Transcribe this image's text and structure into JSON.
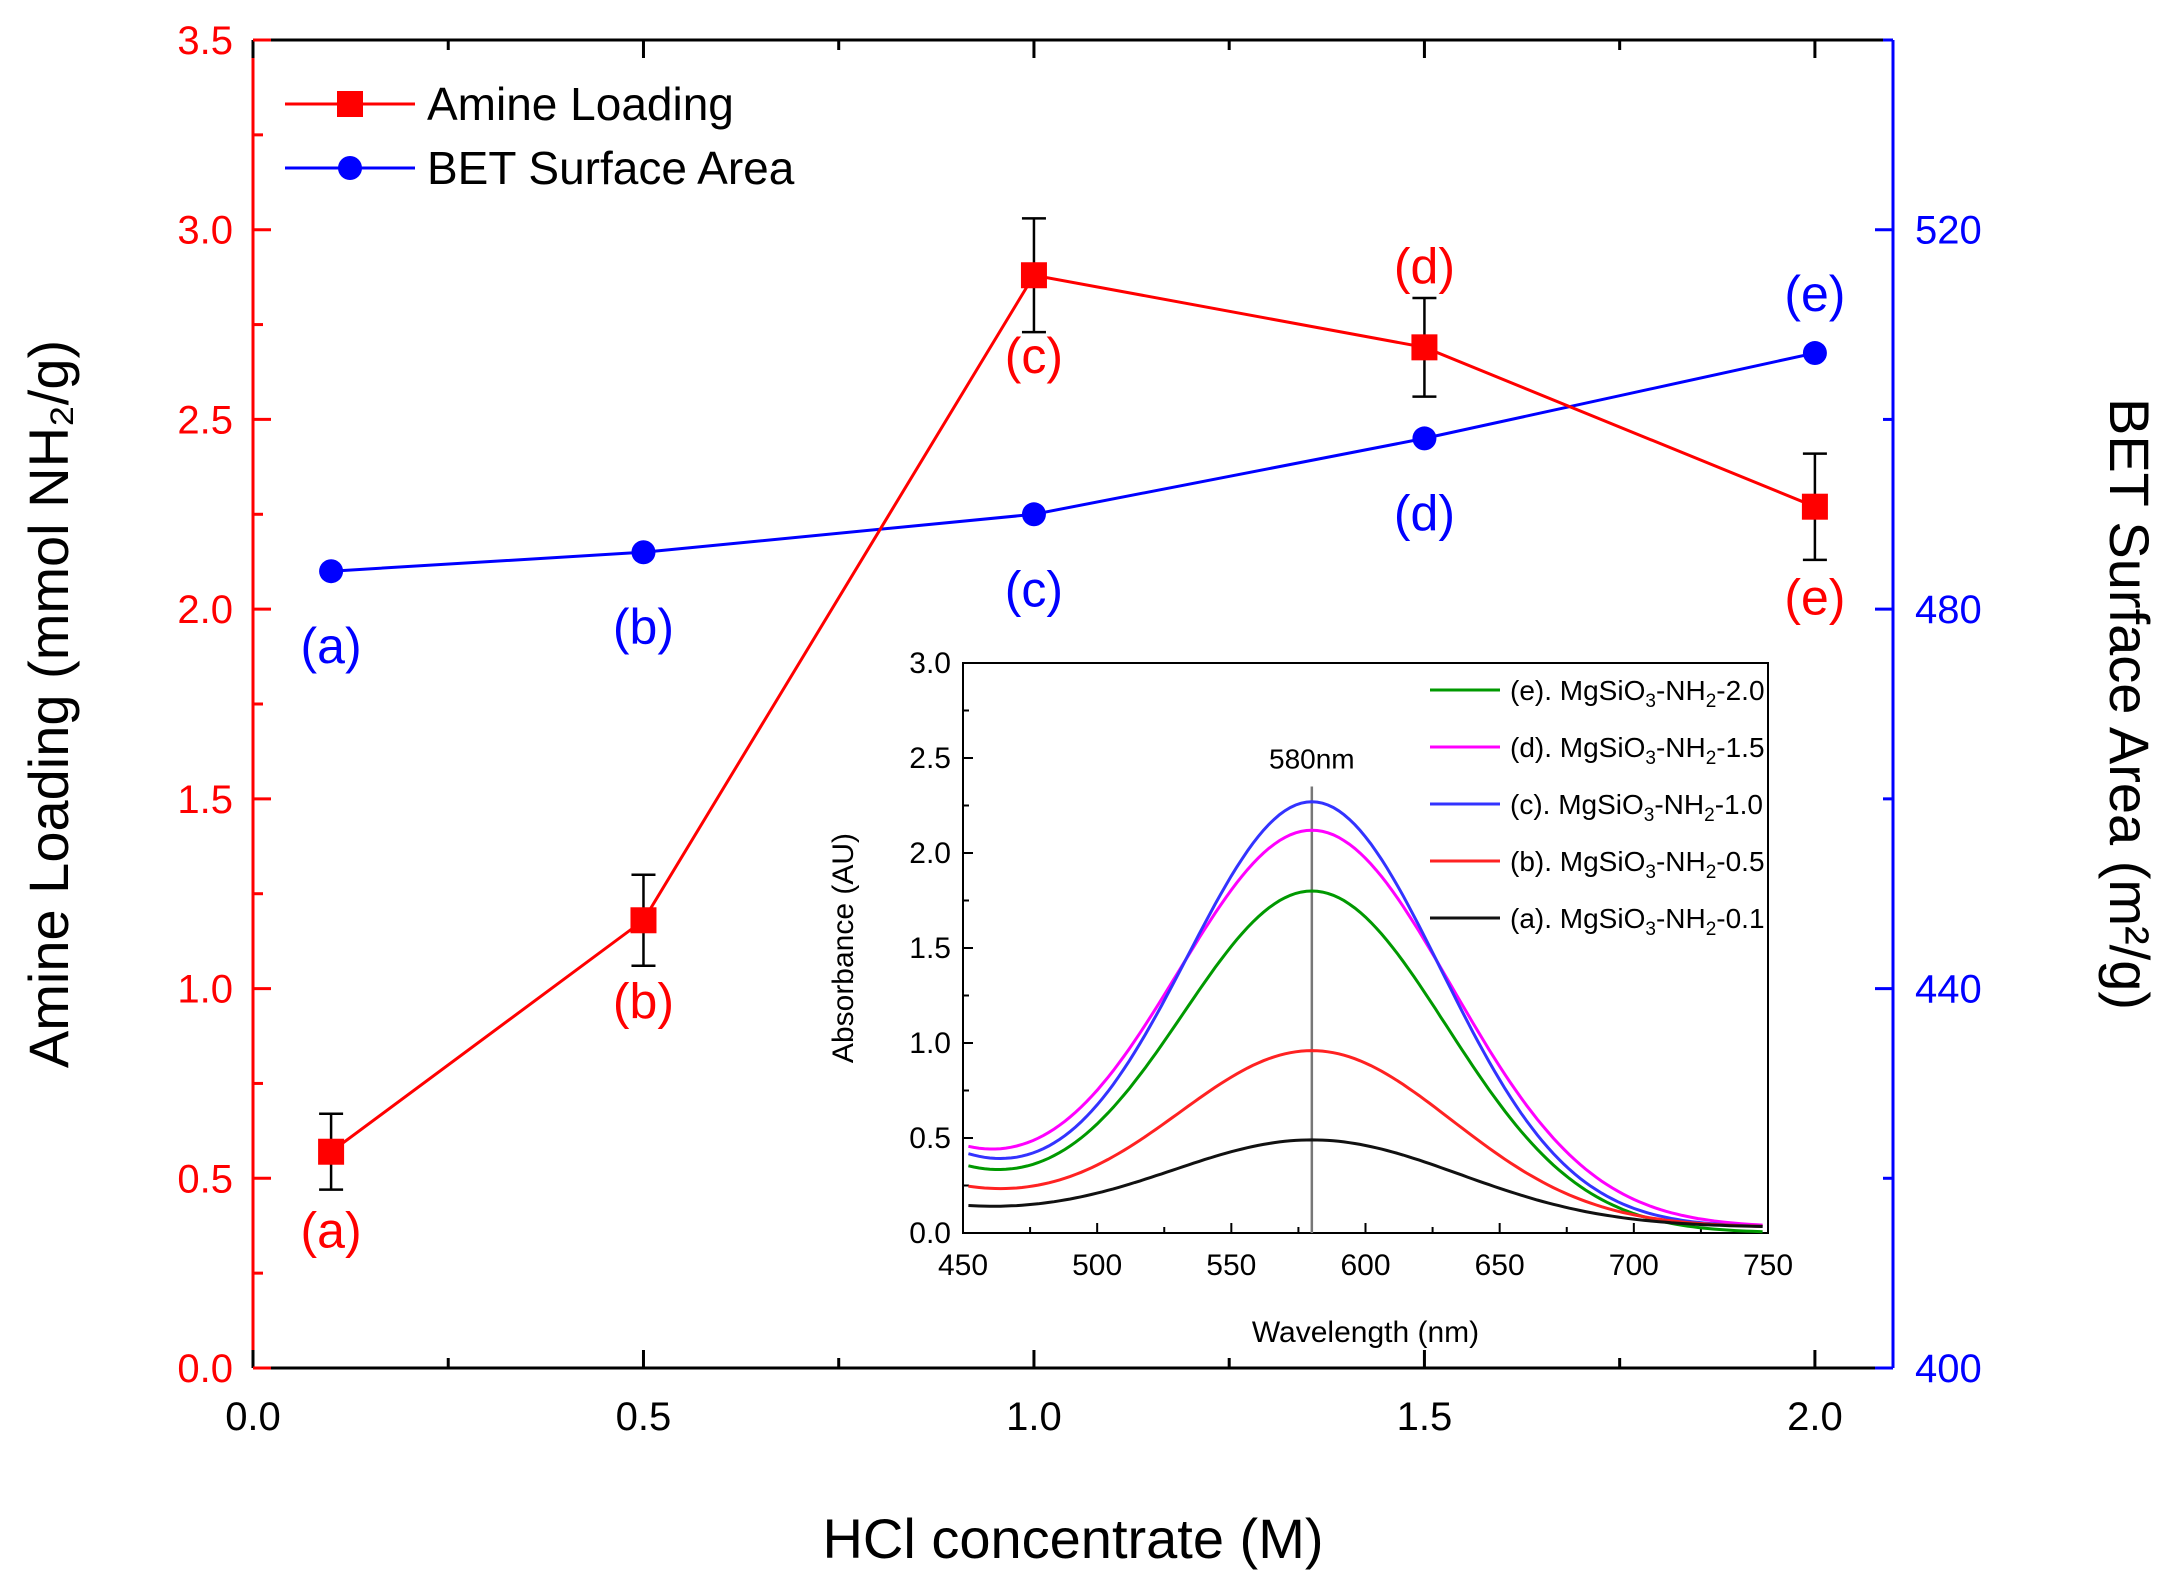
{
  "colors": {
    "primary_series": "#ff0000",
    "secondary_series": "#0000ff",
    "axis": "#000000",
    "inset_e": "#009900",
    "inset_d": "#ff00ff",
    "inset_c": "#3333ff",
    "inset_b": "#ff2222",
    "inset_a": "#111111",
    "marker_line": "#777777"
  },
  "chart_data": [
    {
      "type": "line",
      "xlabel": "HCl concentrate (M)",
      "ylabel_left": "Amine Loading (mmol NH₂/g)",
      "ylabel_right": "BET Surface Area (m²/g)",
      "xlim": [
        0.0,
        2.1
      ],
      "ylim_left": [
        0.0,
        3.5
      ],
      "ylim_right": [
        400,
        540
      ],
      "x_ticks": [
        "0.0",
        "0.5",
        "1.0",
        "1.5",
        "2.0"
      ],
      "y_left_ticks": [
        "0.0",
        "0.5",
        "1.0",
        "1.5",
        "2.0",
        "2.5",
        "3.0",
        "3.5"
      ],
      "y_right_ticks": [
        "400",
        "440",
        "480",
        "520"
      ],
      "legend_position": "top-left",
      "series": [
        {
          "name": "Amine Loading",
          "axis": "left",
          "marker": "square",
          "x": [
            0.1,
            0.5,
            1.0,
            1.5,
            2.0
          ],
          "y": [
            0.57,
            1.18,
            2.88,
            2.69,
            2.27
          ],
          "error": [
            0.1,
            0.12,
            0.15,
            0.13,
            0.14
          ],
          "point_labels": [
            "(a)",
            "(b)",
            "(c)",
            "(d)",
            "(e)"
          ]
        },
        {
          "name": "BET Surface Area",
          "axis": "right",
          "marker": "circle",
          "x": [
            0.1,
            0.5,
            1.0,
            1.5,
            2.0
          ],
          "y": [
            484,
            486,
            490,
            498,
            507
          ],
          "point_labels": [
            "(a)",
            "(b)",
            "(c)",
            "(d)",
            "(e)"
          ]
        }
      ]
    },
    {
      "type": "line",
      "xlabel": "Wavelength (nm)",
      "ylabel": "Absorbance (AU)",
      "xlim": [
        450,
        750
      ],
      "ylim": [
        0.0,
        3.0
      ],
      "x_ticks": [
        "450",
        "500",
        "550",
        "600",
        "650",
        "700",
        "750"
      ],
      "y_ticks": [
        "0.0",
        "0.5",
        "1.0",
        "1.5",
        "2.0",
        "2.5",
        "3.0"
      ],
      "annotation": "580nm",
      "annotation_x": 580,
      "legend_position": "top-right",
      "series": [
        {
          "name_prefix": "(e). MgSiO",
          "name_mid": "-NH",
          "name_suffix": "-2.0",
          "peak": 1.8,
          "baseline": 0.0,
          "start": 0.33,
          "width": 50
        },
        {
          "name_prefix": "(d). MgSiO",
          "name_mid": "-NH",
          "name_suffix": "-1.5",
          "peak": 2.12,
          "baseline": 0.03,
          "start": 0.38,
          "width": 52
        },
        {
          "name_prefix": "(c). MgSiO",
          "name_mid": "-NH",
          "name_suffix": "-1.0",
          "peak": 2.27,
          "baseline": 0.03,
          "start": 0.37,
          "width": 48
        },
        {
          "name_prefix": "(b). MgSiO",
          "name_mid": "-NH",
          "name_suffix": "-0.5",
          "peak": 0.96,
          "baseline": 0.03,
          "start": 0.2,
          "width": 52
        },
        {
          "name_prefix": "(a). MgSiO",
          "name_mid": "-NH",
          "name_suffix": "-0.1",
          "peak": 0.49,
          "baseline": 0.03,
          "start": 0.1,
          "width": 55
        }
      ],
      "sub3": "3",
      "sub2": "2"
    }
  ]
}
